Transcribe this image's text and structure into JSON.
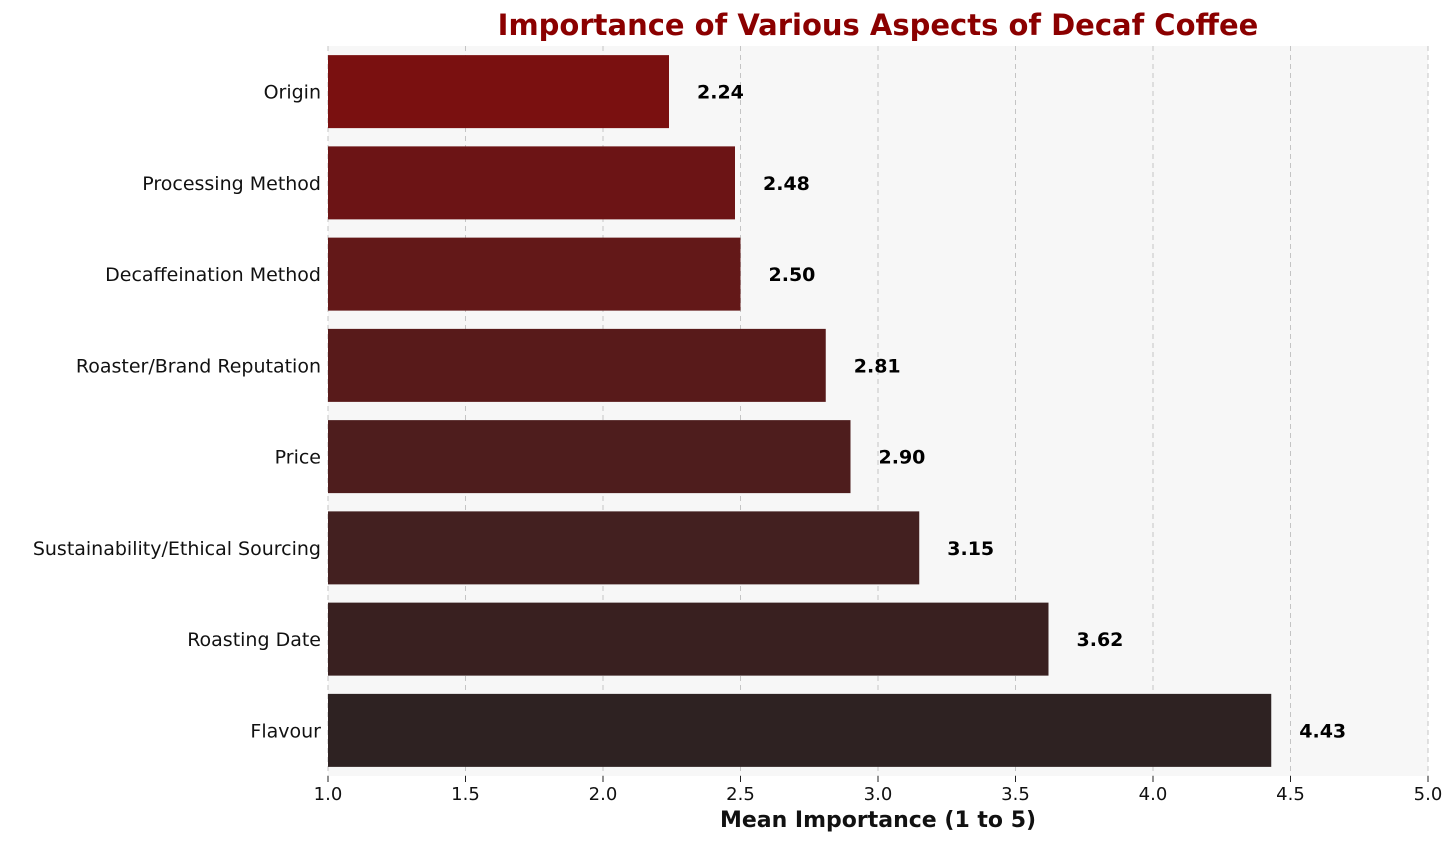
{
  "chart_data": {
    "type": "bar",
    "orientation": "horizontal",
    "title": "Importance of Various Aspects of Decaf Coffee",
    "xlabel": "Mean Importance (1 to 5)",
    "ylabel": "",
    "xlim": [
      1.0,
      5.0
    ],
    "xticks": [
      "1.0",
      "1.5",
      "2.0",
      "2.5",
      "3.0",
      "3.5",
      "4.0",
      "4.5",
      "5.0"
    ],
    "grid": "vertical dashed",
    "categories": [
      "Origin",
      "Processing Method",
      "Decaffeination Method",
      "Roaster/Brand Reputation",
      "Price",
      "Sustainability/Ethical Sourcing",
      "Roasting Date",
      "Flavour"
    ],
    "values": [
      2.24,
      2.48,
      2.5,
      2.81,
      2.9,
      3.15,
      3.62,
      4.43
    ],
    "value_labels": [
      "2.24",
      "2.48",
      "2.50",
      "2.81",
      "2.90",
      "3.15",
      "3.62",
      "4.43"
    ],
    "bar_colors": [
      "#7a1010",
      "#6c1415",
      "#631818",
      "#581a1a",
      "#4e1d1d",
      "#432020",
      "#392020",
      "#2e2222"
    ],
    "title_color": "#8b0000",
    "plot_background": "#f7f7f7"
  }
}
